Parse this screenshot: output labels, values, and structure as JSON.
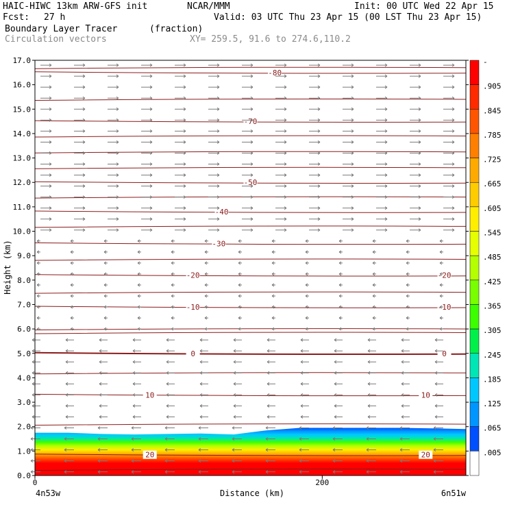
{
  "header": {
    "title_left": "HAIC-HIWC 13km ARW-GFS init",
    "org": "NCAR/MMM",
    "init": "Init: 00 UTC Wed 22 Apr 15",
    "fcst_label": "Fcst:",
    "fcst_value": "27 h",
    "valid": "Valid: 03 UTC Thu 23 Apr 15 (00 LST Thu 23 Apr 15)",
    "field": "Boundary Layer Tracer",
    "units": "(fraction)",
    "vectors": "Circulation vectors",
    "xy": "XY= 259.5, 91.6 to 274.6,110.2"
  },
  "chart_data": {
    "type": "heatmap",
    "ylabel": "Height (km)",
    "xlabel": "Distance (km)",
    "xlim": [
      0,
      300
    ],
    "ylim": [
      0,
      17
    ],
    "yticks": [
      "0.0",
      "1.0",
      "2.0",
      "3.0",
      "4.0",
      "5.0",
      "6.0",
      "7.0",
      "8.0",
      "9.0",
      "10.0",
      "11.0",
      "12.0",
      "13.0",
      "14.0",
      "15.0",
      "16.0",
      "17.0"
    ],
    "xticks": [
      {
        "x": 0,
        "label": "0"
      },
      {
        "x": 200,
        "label": "200"
      }
    ],
    "x_end_labels": {
      "left": "4n53w",
      "right": "6n51w"
    },
    "colorbar_labels": [
      "-",
      ".905",
      ".845",
      ".785",
      ".725",
      ".665",
      ".605",
      ".545",
      ".485",
      ".425",
      ".365",
      ".305",
      ".245",
      ".185",
      ".125",
      ".065",
      ".005"
    ],
    "colorbar_colors": [
      "#ff0000",
      "#ff2a00",
      "#ff5500",
      "#ff7f00",
      "#ffaa00",
      "#ffcc00",
      "#ffee00",
      "#e6ff00",
      "#b4ff00",
      "#78ff00",
      "#3cff00",
      "#00f04a",
      "#00e6b4",
      "#00c8ff",
      "#0096ff",
      "#0050ff",
      "#ffffff"
    ],
    "tracer_top_km": [
      1.75,
      1.75,
      1.7,
      1.68,
      1.7,
      1.72,
      1.68,
      1.85,
      1.95,
      1.95,
      1.95,
      1.95,
      1.93,
      1.9
    ],
    "temperature_contours": [
      {
        "value": "-80",
        "y_km": 16.5,
        "labels_x_km": [
          167
        ]
      },
      {
        "value": "-70",
        "y_km": 14.5,
        "labels_x_km": [
          150
        ]
      },
      {
        "value": "-50",
        "y_km": 12.0,
        "labels_x_km": [
          150
        ]
      },
      {
        "value": "-40",
        "y_km": 10.8,
        "labels_x_km": [
          130
        ]
      },
      {
        "value": "-30",
        "y_km": 9.5,
        "labels_x_km": [
          128
        ]
      },
      {
        "value": "-20",
        "y_km": 8.2,
        "labels_x_km": [
          110,
          285
        ]
      },
      {
        "value": "-10",
        "y_km": 6.9,
        "labels_x_km": [
          110,
          285
        ]
      },
      {
        "value": "0",
        "y_km": 5.0,
        "labels_x_km": [
          110,
          285
        ]
      },
      {
        "value": "10",
        "y_km": 3.3,
        "labels_x_km": [
          80,
          272
        ]
      },
      {
        "value": "20",
        "y_km": 0.85,
        "labels_x_km": [
          80,
          272
        ]
      }
    ],
    "extra_isotherms_km": [
      16.7,
      15.4,
      13.9,
      13.25,
      12.6,
      11.4,
      10.2,
      8.85,
      7.5,
      6.0,
      5.85,
      4.2,
      2.1,
      0.25
    ]
  }
}
